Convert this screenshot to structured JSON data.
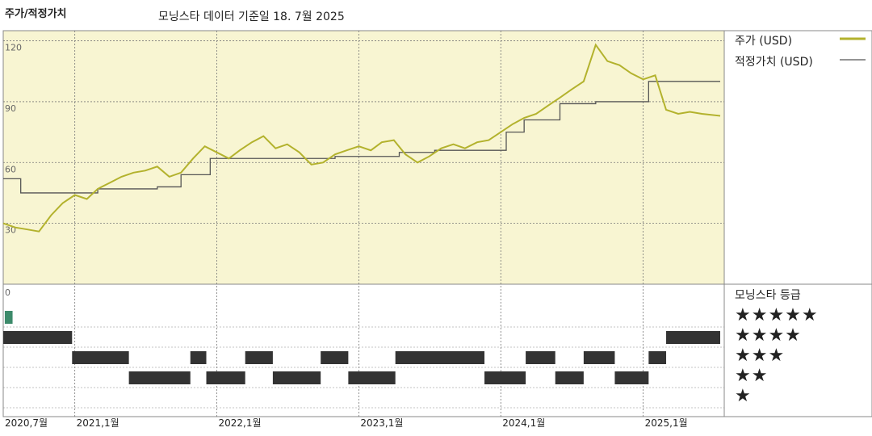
{
  "header": {
    "title": "주가/적정가치",
    "subtitle": "모닝스타 데이터 기준일 18. 7월 2025"
  },
  "legend": {
    "price_label": "주가 (USD)",
    "fair_label": "적정가치 (USD)"
  },
  "rating": {
    "header": "모닝스타 등급",
    "rows": [
      "★★★★★",
      "★★★★",
      "★★★",
      "★★",
      "★"
    ]
  },
  "colors": {
    "price": "#b3b22d",
    "fair": "#555555",
    "bg_upper": "#f8f5d2",
    "bar": "#333333",
    "five_star": "#3c8a6a"
  },
  "chart_data": {
    "type": "line",
    "ylim": [
      0,
      125
    ],
    "y_ticks": [
      0,
      30,
      60,
      90,
      120
    ],
    "x_ticks": [
      "2020,7월",
      "2021,1월",
      "2022,1월",
      "2023,1월",
      "2024,1월",
      "2025,1월"
    ],
    "x_tick_dates": [
      "2020-07-01",
      "2021-01-01",
      "2022-01-01",
      "2023-01-01",
      "2024-01-01",
      "2025-01-01"
    ],
    "x_range": [
      "2020-07-01",
      "2025-07-18"
    ],
    "series": [
      {
        "name": "주가 (USD)",
        "points": [
          [
            "2020-07-01",
            30
          ],
          [
            "2020-08-01",
            28
          ],
          [
            "2020-09-01",
            27
          ],
          [
            "2020-10-01",
            26
          ],
          [
            "2020-11-01",
            34
          ],
          [
            "2020-12-01",
            40
          ],
          [
            "2021-01-01",
            44
          ],
          [
            "2021-02-01",
            42
          ],
          [
            "2021-03-01",
            47
          ],
          [
            "2021-04-01",
            50
          ],
          [
            "2021-05-01",
            53
          ],
          [
            "2021-06-01",
            55
          ],
          [
            "2021-07-01",
            56
          ],
          [
            "2021-08-01",
            58
          ],
          [
            "2021-09-01",
            53
          ],
          [
            "2021-10-01",
            55
          ],
          [
            "2021-11-01",
            62
          ],
          [
            "2021-12-01",
            68
          ],
          [
            "2022-01-01",
            65
          ],
          [
            "2022-02-01",
            62
          ],
          [
            "2022-03-01",
            66
          ],
          [
            "2022-04-01",
            70
          ],
          [
            "2022-05-01",
            73
          ],
          [
            "2022-06-01",
            67
          ],
          [
            "2022-07-01",
            69
          ],
          [
            "2022-08-01",
            65
          ],
          [
            "2022-09-01",
            59
          ],
          [
            "2022-10-01",
            60
          ],
          [
            "2022-11-01",
            64
          ],
          [
            "2022-12-01",
            66
          ],
          [
            "2023-01-01",
            68
          ],
          [
            "2023-02-01",
            66
          ],
          [
            "2023-03-01",
            70
          ],
          [
            "2023-04-01",
            71
          ],
          [
            "2023-05-01",
            64
          ],
          [
            "2023-06-01",
            60
          ],
          [
            "2023-07-01",
            63
          ],
          [
            "2023-08-01",
            67
          ],
          [
            "2023-09-01",
            69
          ],
          [
            "2023-10-01",
            67
          ],
          [
            "2023-11-01",
            70
          ],
          [
            "2023-12-01",
            71
          ],
          [
            "2024-01-01",
            75
          ],
          [
            "2024-02-01",
            79
          ],
          [
            "2024-03-01",
            82
          ],
          [
            "2024-04-01",
            84
          ],
          [
            "2024-05-01",
            88
          ],
          [
            "2024-06-01",
            92
          ],
          [
            "2024-07-01",
            96
          ],
          [
            "2024-08-01",
            100
          ],
          [
            "2024-09-01",
            118
          ],
          [
            "2024-10-01",
            110
          ],
          [
            "2024-11-01",
            108
          ],
          [
            "2024-12-01",
            104
          ],
          [
            "2025-01-01",
            101
          ],
          [
            "2025-02-01",
            103
          ],
          [
            "2025-03-01",
            86
          ],
          [
            "2025-04-01",
            84
          ],
          [
            "2025-05-01",
            85
          ],
          [
            "2025-06-01",
            84
          ],
          [
            "2025-07-18",
            83
          ]
        ]
      },
      {
        "name": "적정가치 (USD)",
        "step": true,
        "points": [
          [
            "2020-07-01",
            52
          ],
          [
            "2020-08-15",
            45
          ],
          [
            "2021-03-01",
            47
          ],
          [
            "2021-08-01",
            48
          ],
          [
            "2021-10-01",
            54
          ],
          [
            "2021-12-15",
            62
          ],
          [
            "2022-11-01",
            63
          ],
          [
            "2023-03-01",
            63
          ],
          [
            "2023-04-15",
            65
          ],
          [
            "2023-07-15",
            66
          ],
          [
            "2024-01-15",
            75
          ],
          [
            "2024-03-01",
            81
          ],
          [
            "2024-06-01",
            89
          ],
          [
            "2024-09-01",
            90
          ],
          [
            "2025-01-01",
            90
          ],
          [
            "2025-01-15",
            100
          ],
          [
            "2025-07-18",
            100
          ]
        ]
      }
    ],
    "star_rating_periods": [
      {
        "stars": 5,
        "start": "2020-07-05",
        "end": "2020-07-25"
      },
      {
        "stars": 4,
        "start": "2020-07-01",
        "end": "2020-12-25"
      },
      {
        "stars": 3,
        "start": "2020-12-25",
        "end": "2021-05-20"
      },
      {
        "stars": 2,
        "start": "2021-05-20",
        "end": "2021-10-25"
      },
      {
        "stars": 3,
        "start": "2021-10-25",
        "end": "2021-12-05"
      },
      {
        "stars": 2,
        "start": "2021-12-05",
        "end": "2022-03-15"
      },
      {
        "stars": 3,
        "start": "2022-03-15",
        "end": "2022-05-25"
      },
      {
        "stars": 2,
        "start": "2022-05-25",
        "end": "2022-09-25"
      },
      {
        "stars": 3,
        "start": "2022-09-25",
        "end": "2022-12-05"
      },
      {
        "stars": 2,
        "start": "2022-12-05",
        "end": "2023-04-05"
      },
      {
        "stars": 3,
        "start": "2023-04-05",
        "end": "2023-11-20"
      },
      {
        "stars": 2,
        "start": "2023-11-20",
        "end": "2024-03-05"
      },
      {
        "stars": 3,
        "start": "2024-03-05",
        "end": "2024-05-20"
      },
      {
        "stars": 2,
        "start": "2024-05-20",
        "end": "2024-08-01"
      },
      {
        "stars": 3,
        "start": "2024-08-01",
        "end": "2024-10-20"
      },
      {
        "stars": 2,
        "start": "2024-10-20",
        "end": "2025-01-15"
      },
      {
        "stars": 3,
        "start": "2025-01-15",
        "end": "2025-03-01"
      },
      {
        "stars": 4,
        "start": "2025-03-01",
        "end": "2025-07-18"
      }
    ]
  }
}
